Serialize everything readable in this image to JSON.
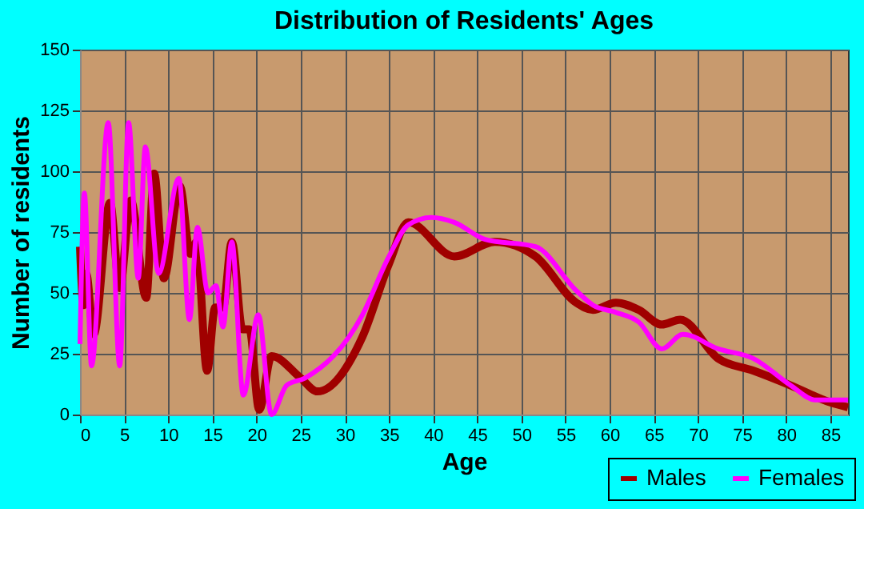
{
  "chart_data": {
    "type": "line",
    "title": "Distribution of Residents' Ages",
    "xlabel": "Age",
    "ylabel": "Number of residents",
    "xlim": [
      0,
      87
    ],
    "xticks": [
      0,
      5,
      10,
      15,
      20,
      25,
      30,
      35,
      40,
      45,
      50,
      55,
      60,
      65,
      70,
      75,
      80,
      85
    ],
    "ylim": [
      0,
      150
    ],
    "yticks": [
      0,
      25,
      50,
      75,
      100,
      125,
      150
    ],
    "grid": true,
    "legend": "bottom right",
    "marker": "none",
    "line_style": "solid",
    "series": [
      {
        "name": "Males",
        "color": "#a00000",
        "x": [
          0,
          0.4,
          0.7,
          1.55,
          3.4,
          4.5,
          5.75,
          7.5,
          8.4,
          9.5,
          11.3,
          12.5,
          13.2,
          14.4,
          15.3,
          16.2,
          17.2,
          18.4,
          19.2,
          20.3,
          21.7,
          25,
          26.9,
          32,
          35,
          37.2,
          42.4,
          47,
          51.6,
          56.2,
          58.1,
          60.7,
          63.3,
          65.9,
          68,
          72.3,
          76.3,
          80.5,
          85,
          87
        ],
        "values": [
          69,
          45,
          58,
          33,
          87,
          52,
          88,
          48,
          99,
          56,
          94,
          66,
          71,
          18,
          44,
          44,
          71,
          35,
          35,
          2,
          24,
          15,
          9.5,
          32,
          62,
          79,
          65,
          71,
          65,
          46,
          43,
          46,
          43,
          37,
          39,
          23,
          18,
          12,
          5,
          3
        ]
      },
      {
        "name": "Females",
        "color": "#ff00ff",
        "x": [
          0,
          0.5,
          1.3,
          3.2,
          4.5,
          5.5,
          6.6,
          7.4,
          8.9,
          11.2,
          12.4,
          13.3,
          14.5,
          15.4,
          16.2,
          17.2,
          18.5,
          20.2,
          21.7,
          23.4,
          25.5,
          32,
          35,
          37.2,
          39.8,
          42.4,
          45.9,
          51.6,
          56.2,
          58.1,
          60.7,
          63.3,
          65.9,
          68.3,
          72.3,
          76.3,
          80.5,
          83.3,
          87
        ],
        "values": [
          29,
          91,
          20,
          120,
          20,
          120,
          56,
          110,
          58,
          97,
          39,
          77,
          50,
          53,
          36,
          71,
          8,
          41,
          0,
          12,
          15,
          41,
          65,
          78,
          81,
          79,
          72,
          69,
          51,
          45,
          42,
          38,
          27,
          33,
          27,
          23,
          12,
          6,
          6
        ]
      }
    ]
  }
}
